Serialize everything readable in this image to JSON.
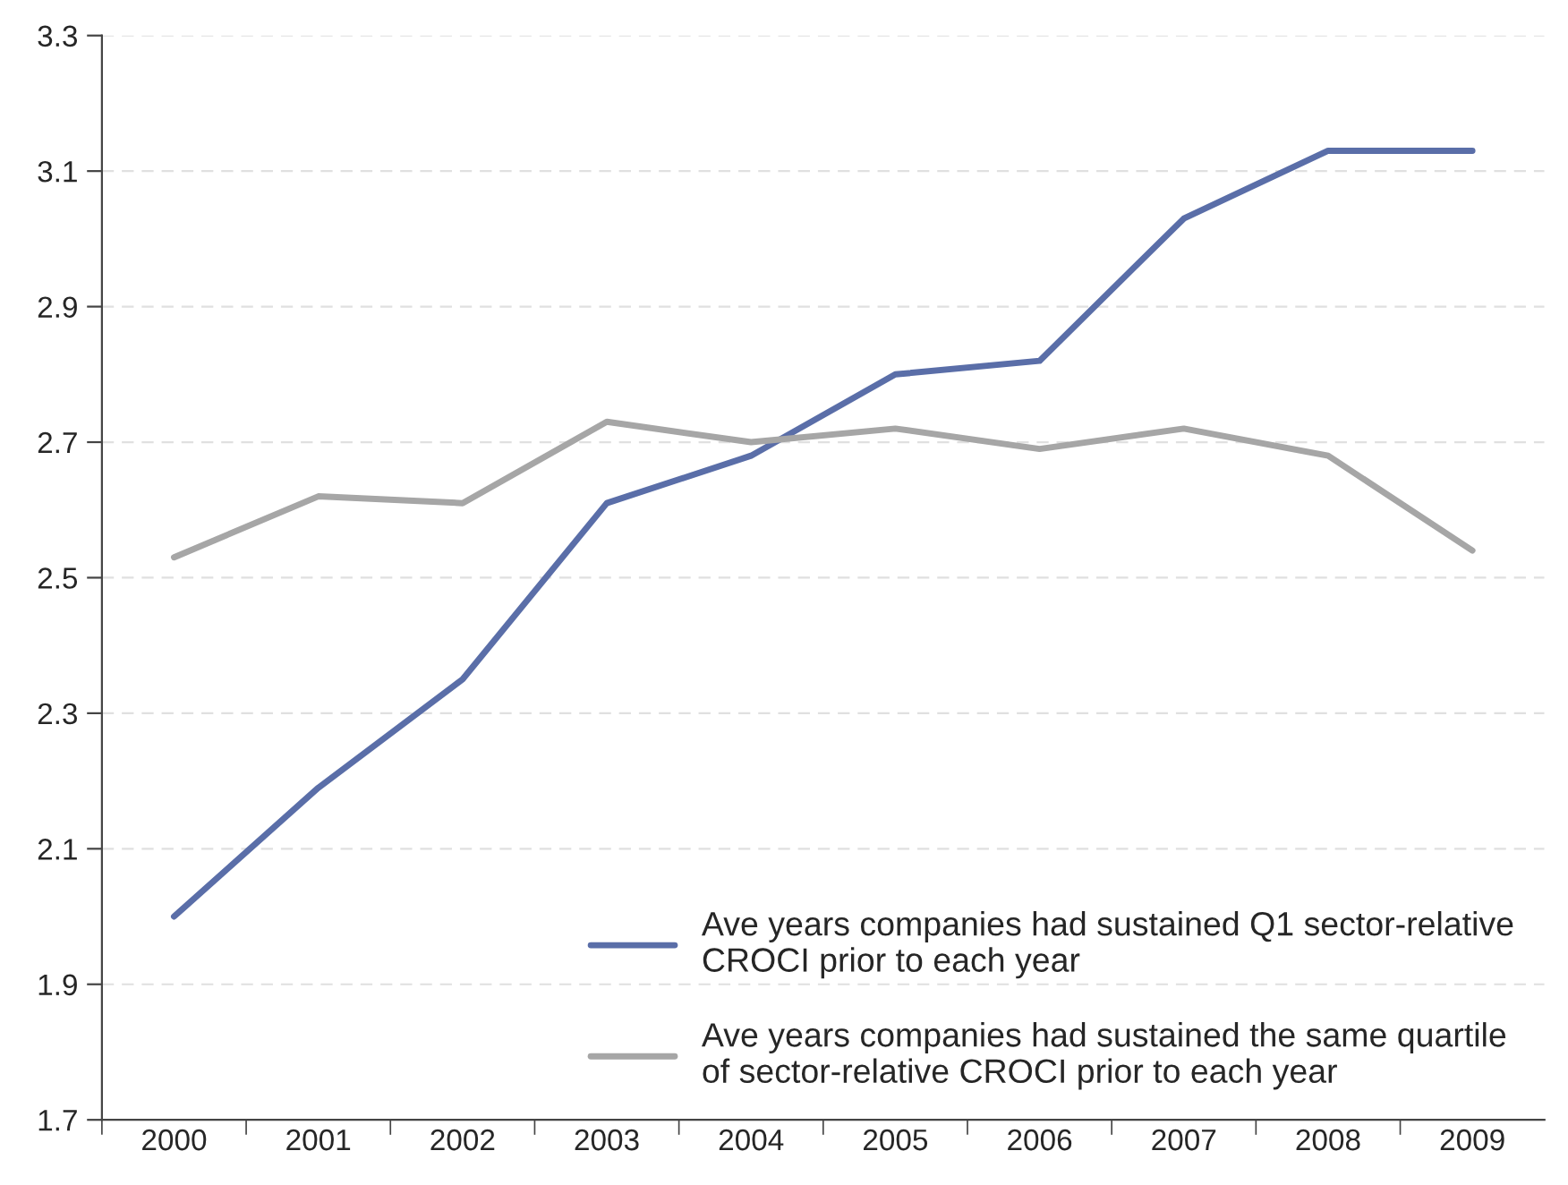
{
  "chart_data": {
    "type": "line",
    "categories": [
      "2000",
      "2001",
      "2002",
      "2003",
      "2004",
      "2005",
      "2006",
      "2007",
      "2008",
      "2009"
    ],
    "series": [
      {
        "name": "Ave years companies had sustained Q1 sector-relative CROCI prior to each year",
        "color": "#5a6ea8",
        "values": [
          2.0,
          2.19,
          2.35,
          2.61,
          2.68,
          2.8,
          2.82,
          3.03,
          3.13,
          3.13
        ]
      },
      {
        "name": "Ave years companies had sustained the same quartile of sector-relative CROCI prior to each year",
        "color": "#a6a6a6",
        "values": [
          2.53,
          2.62,
          2.61,
          2.73,
          2.7,
          2.72,
          2.69,
          2.72,
          2.68,
          2.54
        ]
      }
    ],
    "ylim": [
      1.7,
      3.3
    ],
    "yticks": [
      1.7,
      1.9,
      2.1,
      2.3,
      2.5,
      2.7,
      2.9,
      3.1,
      3.3
    ],
    "grid": "y",
    "legend": "bottom right",
    "marker": "none",
    "line_style": "solid"
  }
}
